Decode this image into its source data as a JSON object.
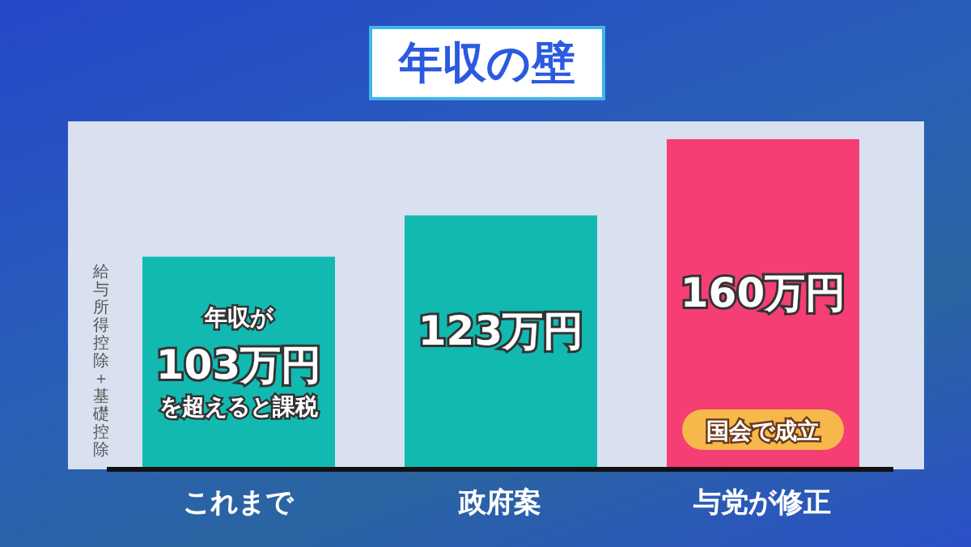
{
  "chart_data": {
    "type": "bar",
    "title": "年収の壁",
    "ylabel": "給与所得控除＋基礎控除",
    "categories": [
      "これまで",
      "政府案",
      "与党が修正"
    ],
    "values": [
      103,
      123,
      160
    ],
    "colors": [
      "#12b9b1",
      "#12b9b1",
      "#f53e74"
    ],
    "value_labels": [
      "年収が103万円を超えると課税",
      "123万円",
      "160万円"
    ],
    "annotations": [
      "国会で成立"
    ],
    "legend": false,
    "grid": false
  }
}
